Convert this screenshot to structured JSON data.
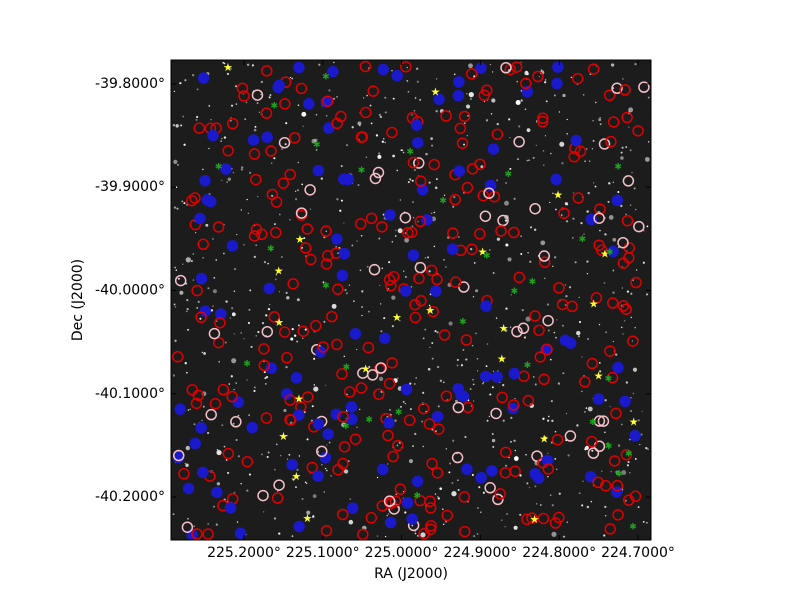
{
  "chart_data": {
    "type": "image",
    "xlabel": "RA (J2000)",
    "ylabel": "Dec (J2000)",
    "xlim": [
      225.2926,
      224.6835
    ],
    "ylim": [
      -40.2416,
      -39.7768
    ],
    "xticks": [
      {
        "value": 225.2,
        "label": "225.2000°"
      },
      {
        "value": 225.1,
        "label": "225.1000°"
      },
      {
        "value": 225.0,
        "label": "225.0000°"
      },
      {
        "value": 224.9,
        "label": "224.9000°"
      },
      {
        "value": 224.8,
        "label": "224.8000°"
      },
      {
        "value": 224.7,
        "label": "224.7000°"
      }
    ],
    "yticks": [
      {
        "value": -39.8,
        "label": "-39.8000°"
      },
      {
        "value": -39.9,
        "label": "-39.9000°"
      },
      {
        "value": -40.0,
        "label": "-40.0000°"
      },
      {
        "value": -40.1,
        "label": "-40.1000°"
      },
      {
        "value": -40.2,
        "label": "-40.2000°"
      }
    ]
  }
}
